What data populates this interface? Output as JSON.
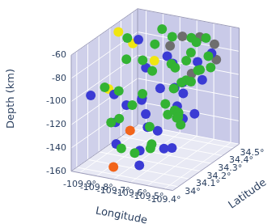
{
  "chart_data": {
    "type": "scatter3d",
    "x_label": "Longitude",
    "y_label": "Latitude",
    "z_label": "Depth (km)",
    "xlim": [
      -109.95,
      -109.35
    ],
    "xticks": [
      {
        "value": -109.9,
        "label": "-109.9°"
      },
      {
        "value": -109.8,
        "label": "-109.8°"
      },
      {
        "value": -109.7,
        "label": "-109.7°"
      },
      {
        "value": -109.6,
        "label": "-109.6°"
      },
      {
        "value": -109.5,
        "label": "-109.5°"
      },
      {
        "value": -109.4,
        "label": "-109.4°"
      }
    ],
    "ylim": [
      33.95,
      34.55
    ],
    "yticks": [
      {
        "value": 34,
        "label": "34°"
      },
      {
        "value": 34.1,
        "label": "34.1°"
      },
      {
        "value": 34.2,
        "label": "34.2°"
      },
      {
        "value": 34.3,
        "label": "34.3°"
      },
      {
        "value": 34.4,
        "label": "34.4°"
      },
      {
        "value": 34.5,
        "label": "34.5°"
      }
    ],
    "zlim": [
      -160,
      -60
    ],
    "zticks": [
      -160,
      -140,
      -120,
      -100,
      -80,
      -60
    ],
    "grid": true,
    "marker": "circle",
    "series": [
      {
        "color": "#33b333",
        "x": [
          -109.85,
          -109.82,
          -109.78,
          -109.75,
          -109.72,
          -109.7,
          -109.68,
          -109.65,
          -109.62,
          -109.6,
          -109.58,
          -109.56,
          -109.55,
          -109.53,
          -109.52,
          -109.5,
          -109.48,
          -109.47,
          -109.45,
          -109.43,
          -109.88,
          -109.8,
          -109.74,
          -109.66,
          -109.63,
          -109.59,
          -109.57,
          -109.54,
          -109.51,
          -109.49,
          -109.46,
          -109.44,
          -109.7,
          -109.61,
          -109.83,
          -109.77,
          -109.58,
          -109.52,
          -109.64,
          -109.42
        ],
        "y": [
          34.1,
          34.25,
          34.05,
          34.4,
          34.15,
          34.3,
          34.45,
          34.2,
          34.35,
          34.5,
          34.1,
          34.28,
          34.42,
          34.18,
          34.33,
          34.48,
          34.22,
          34.38,
          34.12,
          34.3,
          34.35,
          34.15,
          34.45,
          34.08,
          34.4,
          34.25,
          34.5,
          34.05,
          34.36,
          34.2,
          34.44,
          34.14,
          34.02,
          34.47,
          34.2,
          34.32,
          34.38,
          34.26,
          34.12,
          34.4
        ],
        "z": [
          -95,
          -80,
          -120,
          -75,
          -110,
          -90,
          -70,
          -130,
          -85,
          -72,
          -140,
          -100,
          -78,
          -115,
          -95,
          -68,
          -125,
          -88,
          -105,
          -82,
          -70,
          -100,
          -65,
          -145,
          -92,
          -112,
          -75,
          -132,
          -98,
          -118,
          -80,
          -108,
          -138,
          -90,
          -128,
          -84,
          -102,
          -122,
          -96,
          -86
        ]
      },
      {
        "color": "#3b3bd4",
        "x": [
          -109.9,
          -109.86,
          -109.8,
          -109.76,
          -109.73,
          -109.69,
          -109.66,
          -109.63,
          -109.6,
          -109.57,
          -109.55,
          -109.52,
          -109.5,
          -109.47,
          -109.45,
          -109.42,
          -109.88,
          -109.79,
          -109.71,
          -109.64,
          -109.58,
          -109.53,
          -109.48,
          -109.44,
          -109.67,
          -109.61,
          -109.84,
          -109.56
        ],
        "y": [
          34.05,
          34.2,
          34.12,
          34.3,
          34.02,
          34.42,
          34.18,
          34.08,
          34.35,
          34.15,
          34.48,
          34.25,
          34.1,
          34.4,
          34.3,
          34.05,
          34.45,
          34.38,
          34.22,
          34.28,
          34.0,
          34.32,
          34.5,
          34.18,
          34.44,
          34.12,
          34.28,
          34.36
        ],
        "z": [
          -100,
          -108,
          -125,
          -115,
          -135,
          -85,
          -118,
          -142,
          -105,
          -128,
          -90,
          -112,
          -138,
          -98,
          -120,
          -132,
          -78,
          -95,
          -110,
          -102,
          -148,
          -106,
          -82,
          -116,
          -92,
          -124,
          -122,
          -100
        ]
      },
      {
        "color": "#6e6e6e",
        "x": [
          -109.62,
          -109.55,
          -109.45,
          -109.4,
          -109.5,
          -109.66
        ],
        "y": [
          34.45,
          34.5,
          34.48,
          34.42,
          34.35,
          34.4
        ],
        "z": [
          -68,
          -70,
          -72,
          -80,
          -90,
          -74
        ]
      },
      {
        "color": "#f0e612",
        "x": [
          -109.9,
          -109.88,
          -109.72,
          -109.86
        ],
        "y": [
          34.3,
          34.4,
          34.35,
          34.15
        ],
        "z": [
          -62,
          -78,
          -85,
          -100
        ]
      },
      {
        "color": "#f2641a",
        "x": [
          -109.72,
          -109.7
        ],
        "y": [
          33.98,
          34.1
        ],
        "z": [
          -152,
          -128
        ]
      }
    ]
  }
}
